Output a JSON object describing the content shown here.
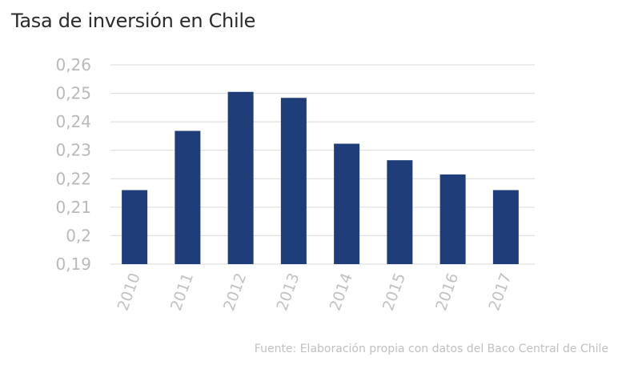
{
  "chart_data": {
    "type": "bar",
    "title": "Tasa de inversión en Chile",
    "source": "Fuente: Elaboración propia con datos del Baco Central de Chile",
    "categories": [
      "2010",
      "2011",
      "2012",
      "2013",
      "2014",
      "2015",
      "2016",
      "2017"
    ],
    "values": [
      0.216,
      0.2368,
      0.2505,
      0.2484,
      0.2323,
      0.2265,
      0.2215,
      0.216
    ],
    "ylim": [
      0.19,
      0.26
    ],
    "yticks": [
      0.26,
      0.25,
      0.24,
      0.23,
      0.22,
      0.21,
      0.2,
      0.19
    ],
    "ytick_labels": [
      "0,26",
      "0,25",
      "0,24",
      "0,23",
      "0,22",
      "0,21",
      "0,2",
      "0,19"
    ],
    "xlabel": "",
    "ylabel": "",
    "grid": true,
    "legend": false,
    "bar_color": "#1f3d78",
    "grid_color": "#d9d9d9"
  }
}
